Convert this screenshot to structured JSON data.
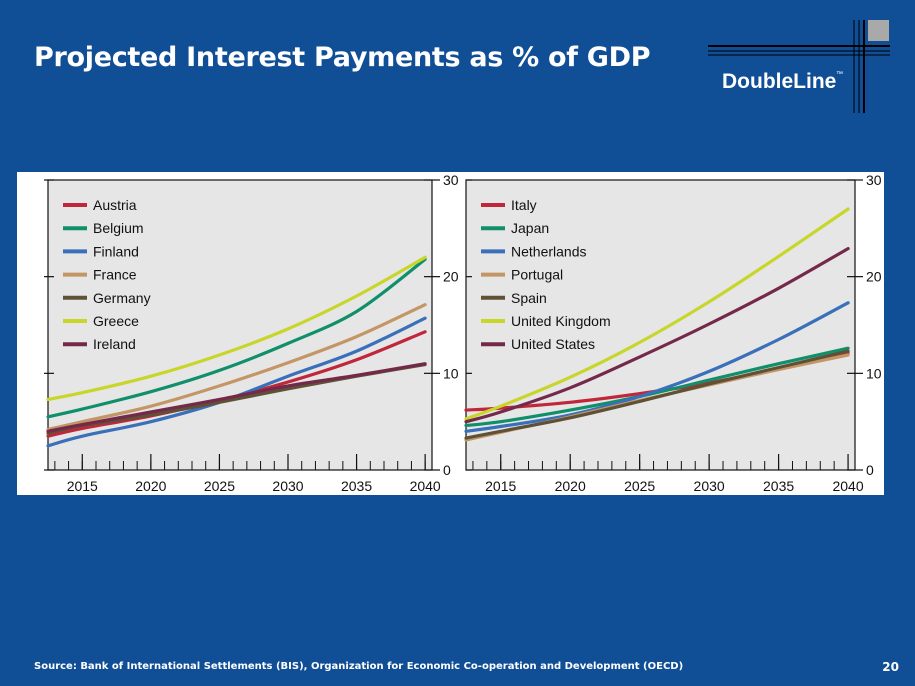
{
  "slide": {
    "title": "Projected Interest Payments as % of GDP",
    "source": "Source: Bank of International Settlements (BIS), Organization for Economic Co-operation and Development (OECD)",
    "page_number": "20"
  },
  "logo": {
    "text": "DoubleLine",
    "tm": "™"
  },
  "colors": {
    "background": "#104e96",
    "plot_bg": "#e6e6e6",
    "Austria": "#c0273a",
    "Belgium": "#0f8f6a",
    "Finland": "#3a6fb9",
    "France": "#c49565",
    "Germany": "#5e5136",
    "Greece": "#c8d62a",
    "Ireland": "#74294a",
    "Italy": "#c0273a",
    "Japan": "#0f8f6a",
    "Netherlands": "#3a6fb9",
    "Portugal": "#c49565",
    "Spain": "#5e5136",
    "United Kingdom": "#c8d62a",
    "United States": "#74294a"
  },
  "chart_data": [
    {
      "type": "line",
      "title": "",
      "xlabel": "",
      "ylabel": "",
      "x_ticks": [
        2015,
        2020,
        2025,
        2030,
        2035,
        2040
      ],
      "xlim": [
        2012.5,
        2040.5
      ],
      "y_ticks": [
        0,
        10,
        20,
        30
      ],
      "ylim": [
        0,
        30
      ],
      "grid": false,
      "legend": "top-left",
      "x": [
        2012.5,
        2015,
        2020,
        2025,
        2030,
        2035,
        2040
      ],
      "series": [
        {
          "name": "Austria",
          "values": [
            3.5,
            4.3,
            5.6,
            7.2,
            9.1,
            11.4,
            14.3
          ]
        },
        {
          "name": "Belgium",
          "values": [
            5.5,
            6.3,
            8.1,
            10.3,
            13.1,
            16.4,
            21.8
          ]
        },
        {
          "name": "Finland",
          "values": [
            2.5,
            3.5,
            5.0,
            7.0,
            9.7,
            12.3,
            15.7
          ]
        },
        {
          "name": "France",
          "values": [
            4.2,
            5.0,
            6.6,
            8.7,
            11.1,
            13.8,
            17.1
          ]
        },
        {
          "name": "Germany",
          "values": [
            3.8,
            4.6,
            5.7,
            7.0,
            8.4,
            9.7,
            10.9
          ]
        },
        {
          "name": "Greece",
          "values": [
            7.3,
            8.0,
            9.7,
            11.9,
            14.6,
            18.0,
            22.0
          ]
        },
        {
          "name": "Ireland",
          "values": [
            4.0,
            4.7,
            6.0,
            7.3,
            8.7,
            9.8,
            11.0
          ]
        }
      ]
    },
    {
      "type": "line",
      "title": "",
      "xlabel": "",
      "ylabel": "",
      "x_ticks": [
        2015,
        2020,
        2025,
        2030,
        2035,
        2040
      ],
      "xlim": [
        2012.5,
        2040.5
      ],
      "y_ticks": [
        0,
        10,
        20,
        30
      ],
      "ylim": [
        0,
        30
      ],
      "grid": false,
      "legend": "top-left",
      "x": [
        2012.5,
        2015,
        2020,
        2025,
        2030,
        2035,
        2040
      ],
      "series": [
        {
          "name": "Italy",
          "values": [
            6.2,
            6.4,
            7.0,
            7.9,
            9.0,
            10.5,
            12.1
          ]
        },
        {
          "name": "Japan",
          "values": [
            4.6,
            5.0,
            6.2,
            7.6,
            9.3,
            11.0,
            12.6
          ]
        },
        {
          "name": "Netherlands",
          "values": [
            4.0,
            4.5,
            5.7,
            7.6,
            10.2,
            13.5,
            17.3
          ]
        },
        {
          "name": "Portugal",
          "values": [
            3.1,
            3.9,
            5.5,
            7.2,
            8.8,
            10.4,
            11.9
          ]
        },
        {
          "name": "Spain",
          "values": [
            3.3,
            4.0,
            5.4,
            7.1,
            8.9,
            10.6,
            12.3
          ]
        },
        {
          "name": "United Kingdom",
          "values": [
            5.3,
            6.6,
            9.6,
            13.2,
            17.4,
            22.1,
            27.0
          ]
        },
        {
          "name": "United States",
          "values": [
            5.0,
            6.0,
            8.5,
            11.7,
            15.1,
            18.8,
            22.9
          ]
        }
      ]
    }
  ]
}
